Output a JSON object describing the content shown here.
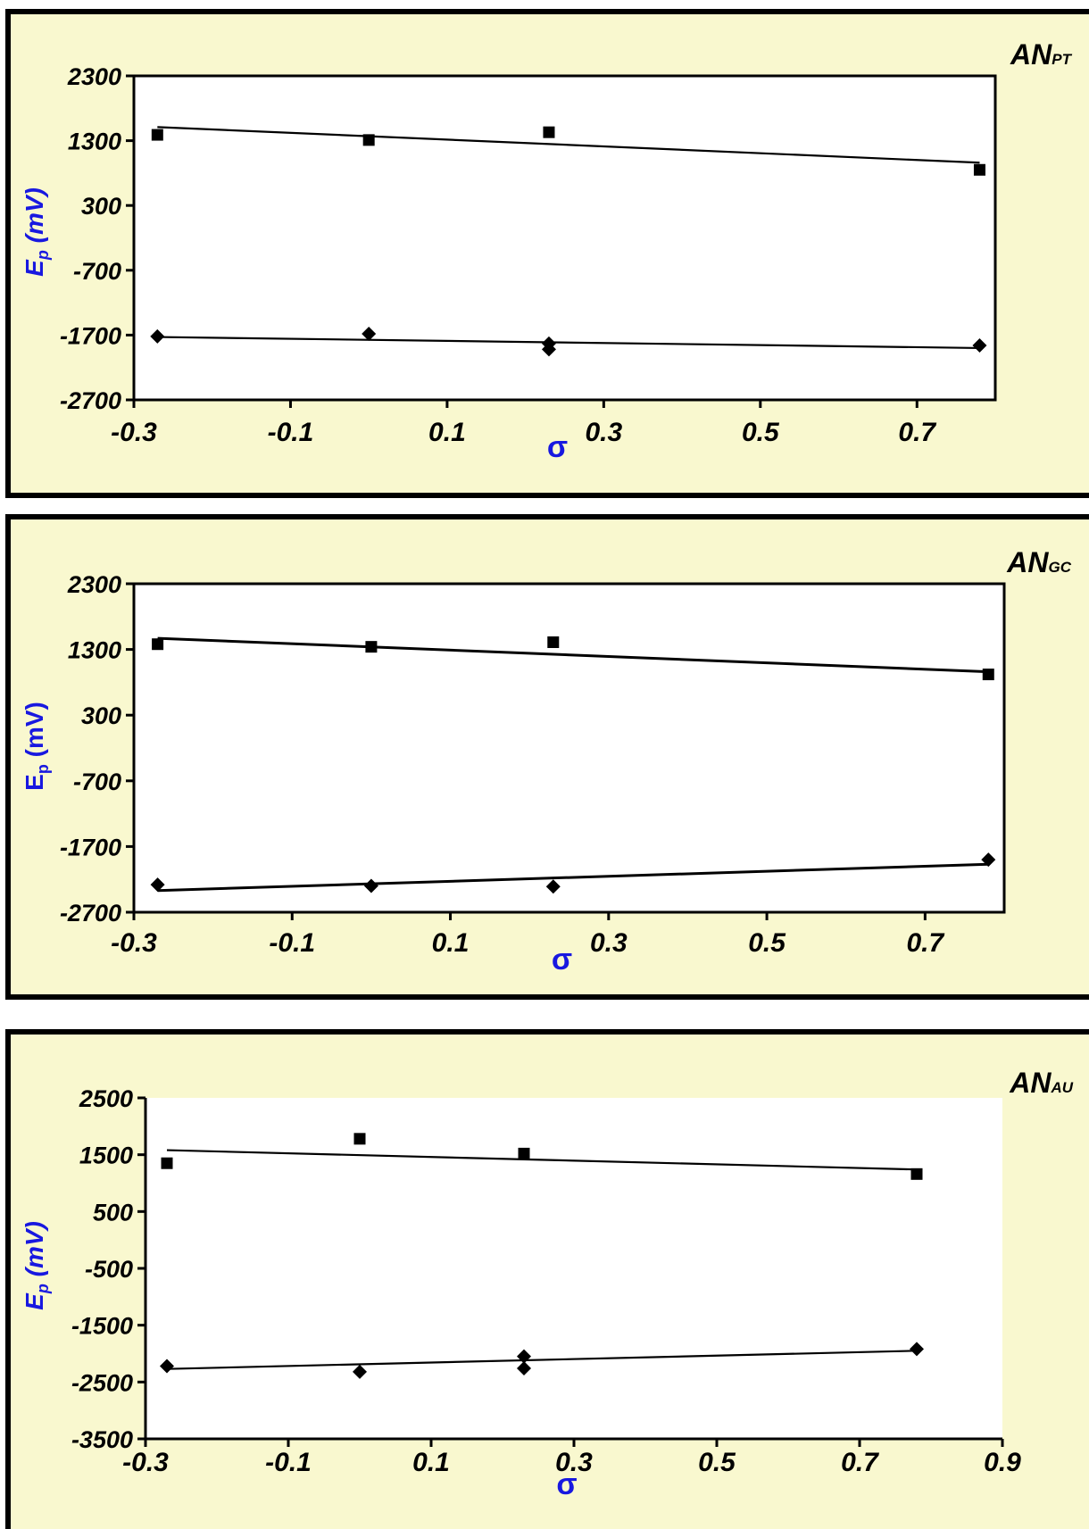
{
  "chart_data": [
    {
      "type": "scatter",
      "title": "AN",
      "title_sub": "PT",
      "xlabel": "σ",
      "ylabel": "Ep (mV)",
      "ylabel_parts": [
        "E",
        "p",
        " (mV)"
      ],
      "ylabel_italic": true,
      "xlim": [
        -0.3,
        0.8
      ],
      "ylim": [
        -2700,
        2300
      ],
      "xticks": [
        -0.3,
        -0.1,
        0.1,
        0.3,
        0.5,
        0.7
      ],
      "xtick_labels": [
        "-0.3",
        "-0.1",
        "0.1",
        "0.3",
        "0.5",
        "0.7"
      ],
      "yticks": [
        2300,
        1300,
        300,
        -700,
        -1700,
        -2700
      ],
      "ytick_labels": [
        "2300",
        "1300",
        "300",
        "-700",
        "-1700",
        "-2700"
      ],
      "plot_bg": "#ffffff",
      "series": [
        {
          "marker": "square",
          "x": [
            -0.27,
            0.0,
            0.23,
            0.78
          ],
          "y": [
            1390,
            1310,
            1430,
            850
          ],
          "fit": [
            [
              -0.27,
              1510
            ],
            [
              0.78,
              960
            ]
          ]
        },
        {
          "marker": "diamond",
          "x": [
            -0.27,
            0.0,
            0.23,
            0.23,
            0.78
          ],
          "y": [
            -1720,
            -1680,
            -1830,
            -1920,
            -1860
          ],
          "fit": [
            [
              -0.27,
              -1730
            ],
            [
              0.78,
              -1900
            ]
          ]
        }
      ]
    },
    {
      "type": "scatter",
      "title": "AN",
      "title_sub": "GC",
      "xlabel": "σ",
      "ylabel": "Ep (mV)",
      "ylabel_parts": [
        "E",
        "p",
        " (mV)"
      ],
      "ylabel_italic": false,
      "xlim": [
        -0.3,
        0.8
      ],
      "ylim": [
        -2700,
        2300
      ],
      "xticks": [
        -0.3,
        -0.1,
        0.1,
        0.3,
        0.5,
        0.7
      ],
      "xtick_labels": [
        "-0.3",
        "-0.1",
        "0.1",
        "0.3",
        "0.5",
        "0.7"
      ],
      "yticks": [
        2300,
        1300,
        300,
        -700,
        -1700,
        -2700
      ],
      "ytick_labels": [
        "2300",
        "1300",
        "300",
        "-700",
        "-1700",
        "-2700"
      ],
      "plot_bg": "#ffffff",
      "series": [
        {
          "marker": "square",
          "x": [
            -0.27,
            0.0,
            0.23,
            0.78
          ],
          "y": [
            1380,
            1340,
            1410,
            920
          ],
          "fit": [
            [
              -0.27,
              1470
            ],
            [
              0.78,
              960
            ]
          ]
        },
        {
          "marker": "diamond",
          "x": [
            -0.27,
            0.0,
            0.23,
            0.78
          ],
          "y": [
            -2280,
            -2300,
            -2310,
            -1900
          ],
          "fit": [
            [
              -0.27,
              -2370
            ],
            [
              0.78,
              -1970
            ]
          ]
        }
      ]
    },
    {
      "type": "scatter",
      "title": "AN",
      "title_sub": "AU",
      "xlabel": "σ",
      "ylabel": "Ep (mV)",
      "ylabel_parts": [
        "E",
        "p",
        " (mV)"
      ],
      "ylabel_italic": true,
      "xlim": [
        -0.3,
        0.9
      ],
      "ylim": [
        -3500,
        2500
      ],
      "xticks": [
        -0.3,
        -0.1,
        0.1,
        0.3,
        0.5,
        0.7,
        0.9
      ],
      "xtick_labels": [
        "-0.3",
        "-0.1",
        "0.1",
        "0.3",
        "0.5",
        "0.7",
        "0.9"
      ],
      "yticks": [
        2500,
        1500,
        500,
        -500,
        -1500,
        -2500,
        -3500
      ],
      "ytick_labels": [
        "2500",
        "1500",
        "500",
        "-500",
        "-1500",
        "-2500",
        "-3500"
      ],
      "plot_bg": "#ffffff",
      "series": [
        {
          "marker": "square",
          "x": [
            -0.27,
            0.0,
            0.23,
            0.78
          ],
          "y": [
            1350,
            1780,
            1520,
            1160
          ],
          "fit": [
            [
              -0.27,
              1580
            ],
            [
              0.78,
              1240
            ]
          ]
        },
        {
          "marker": "diamond",
          "x": [
            -0.27,
            0.0,
            0.23,
            0.23,
            0.78
          ],
          "y": [
            -2220,
            -2320,
            -2050,
            -2260,
            -1920
          ],
          "fit": [
            [
              -0.27,
              -2270
            ],
            [
              0.78,
              -1950
            ]
          ]
        }
      ]
    }
  ]
}
